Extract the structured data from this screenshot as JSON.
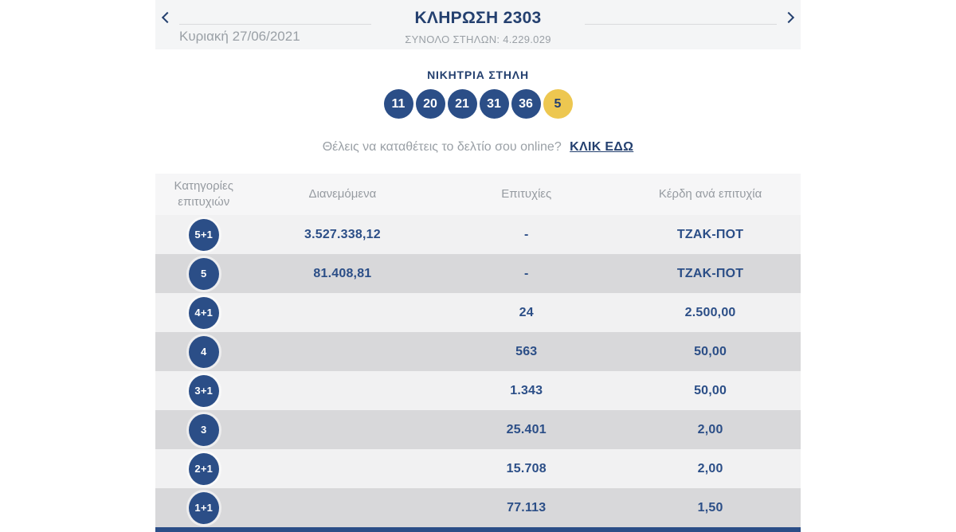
{
  "colors": {
    "navy": "#24406f",
    "ball_blue": "#2b4e87",
    "gold": "#edc750",
    "gray_text": "#9aa0a6",
    "strip_bg": "#f4f5f6",
    "row_light": "#f1f1f2",
    "row_dark": "#d8d8da"
  },
  "draw_header": {
    "prev_icon": "chevron-left",
    "next_icon": "chevron-right",
    "date": "Κυριακή 27/06/2021",
    "title": "ΚΛΗΡΩΣΗ 2303",
    "total_label": "ΣΥΝΟΛΟ ΣΤΗΛΩΝ: 4.229.029"
  },
  "winning_column": {
    "title": "ΝΙΚΗΤΡΙΑ ΣΤΗΛΗ",
    "numbers": [
      "11",
      "20",
      "21",
      "31",
      "36"
    ],
    "bonus_number": "5"
  },
  "online_cta": {
    "question": "Θέλεις να καταθέτεις το δελτίο σου online?",
    "link_label": "ΚΛΙΚ ΕΔΩ"
  },
  "results_table": {
    "headers": {
      "category": "Κατηγορίες επιτυχιών",
      "distributed": "Διανεμόμενα",
      "winners": "Επιτυχίες",
      "prize": "Κέρδη ανά επιτυχία"
    },
    "rows": [
      {
        "category": "5+1",
        "distributed": "3.527.338,12",
        "winners": "-",
        "prize": "ΤΖΑΚ-ΠΟΤ"
      },
      {
        "category": "5",
        "distributed": "81.408,81",
        "winners": "-",
        "prize": "ΤΖΑΚ-ΠΟΤ"
      },
      {
        "category": "4+1",
        "distributed": "",
        "winners": "24",
        "prize": "2.500,00"
      },
      {
        "category": "4",
        "distributed": "",
        "winners": "563",
        "prize": "50,00"
      },
      {
        "category": "3+1",
        "distributed": "",
        "winners": "1.343",
        "prize": "50,00"
      },
      {
        "category": "3",
        "distributed": "",
        "winners": "25.401",
        "prize": "2,00"
      },
      {
        "category": "2+1",
        "distributed": "",
        "winners": "15.708",
        "prize": "2,00"
      },
      {
        "category": "1+1",
        "distributed": "",
        "winners": "77.113",
        "prize": "1,50"
      }
    ]
  }
}
